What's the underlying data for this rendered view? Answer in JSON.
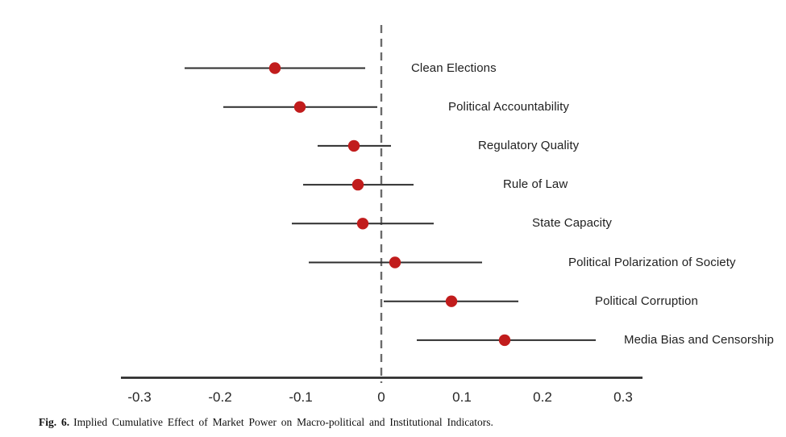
{
  "chart_data": {
    "type": "scatter",
    "subtype": "forest-plot-point-estimates-with-confidence-intervals",
    "title": "",
    "xlabel": "",
    "ylabel": "",
    "xlim": [
      -0.323,
      0.324
    ],
    "grid": false,
    "legend": "none",
    "zero_reference_line": 0,
    "x_ticks": [
      {
        "label": "-0.3",
        "value": -0.3
      },
      {
        "label": "-0.2",
        "value": -0.2
      },
      {
        "label": "-0.1",
        "value": -0.1
      },
      {
        "label": "0",
        "value": 0
      },
      {
        "label": "0.1",
        "value": 0.1
      },
      {
        "label": "0.2",
        "value": 0.2
      },
      {
        "label": "0.3",
        "value": 0.3
      }
    ],
    "rows": [
      {
        "label": "Clean Elections",
        "estimate": -0.132,
        "ci_low": -0.244,
        "ci_high": -0.02
      },
      {
        "label": "Political Accountability",
        "estimate": -0.101,
        "ci_low": -0.196,
        "ci_high": -0.005
      },
      {
        "label": "Regulatory Quality",
        "estimate": -0.034,
        "ci_low": -0.079,
        "ci_high": 0.012
      },
      {
        "label": "Rule of Law",
        "estimate": -0.029,
        "ci_low": -0.097,
        "ci_high": 0.04
      },
      {
        "label": "State Capacity",
        "estimate": -0.023,
        "ci_low": -0.111,
        "ci_high": 0.065
      },
      {
        "label": "Political Polarization of Society",
        "estimate": 0.017,
        "ci_low": -0.09,
        "ci_high": 0.125
      },
      {
        "label": "Political Corruption",
        "estimate": 0.087,
        "ci_low": 0.003,
        "ci_high": 0.17
      },
      {
        "label": "Media Bias and Censorship",
        "estimate": 0.153,
        "ci_low": 0.044,
        "ci_high": 0.266
      }
    ],
    "colors": {
      "point": "#c11c1c",
      "ci_line": "#2e2e2e",
      "axis_line": "#2e2e2e",
      "zero_line": "#6b6b6b",
      "label_text": "#1f1f1f",
      "tick_text": "#262626"
    }
  },
  "caption": {
    "prefix": "Fig. 6.",
    "text": "Implied Cumulative Effect of Market Power on Macro-political and Institutional Indicators."
  }
}
